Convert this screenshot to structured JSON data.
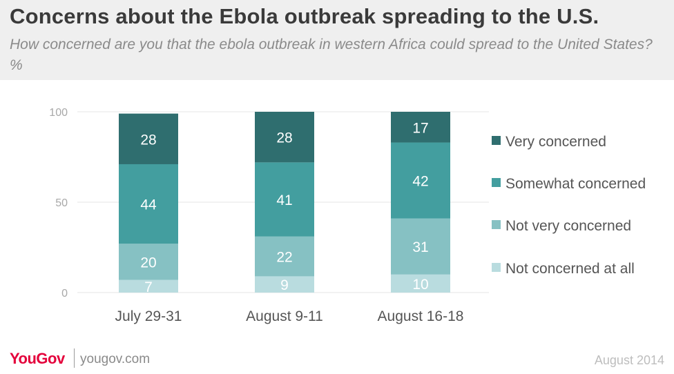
{
  "title": "Concerns about the Ebola outbreak spreading to the U.S.",
  "subtitle": "How concerned are you that the ebola outbreak in western Africa could spread to the United States? %",
  "footer": {
    "brand": "YouGov",
    "site": "yougov.com",
    "date": "August 2014"
  },
  "chart_data": {
    "type": "bar",
    "stacked": true,
    "categories": [
      "July 29-31",
      "August 9-11",
      "August 16-18"
    ],
    "series": [
      {
        "name": "Not concerned at all",
        "values": [
          7,
          9,
          10
        ],
        "color": "#b9dcdf"
      },
      {
        "name": "Not very concerned",
        "values": [
          20,
          22,
          31
        ],
        "color": "#86c1c3"
      },
      {
        "name": "Somewhat concerned",
        "values": [
          44,
          41,
          42
        ],
        "color": "#439e9f"
      },
      {
        "name": "Very concerned",
        "values": [
          28,
          28,
          17
        ],
        "color": "#2f6e6f"
      }
    ],
    "ylim": [
      0,
      100
    ],
    "yticks": [
      0,
      50,
      100
    ],
    "grid": true,
    "legend_position": "right",
    "legend_order": [
      "Very concerned",
      "Somewhat concerned",
      "Not very concerned",
      "Not concerned at all"
    ],
    "xlabel": "",
    "ylabel": ""
  }
}
